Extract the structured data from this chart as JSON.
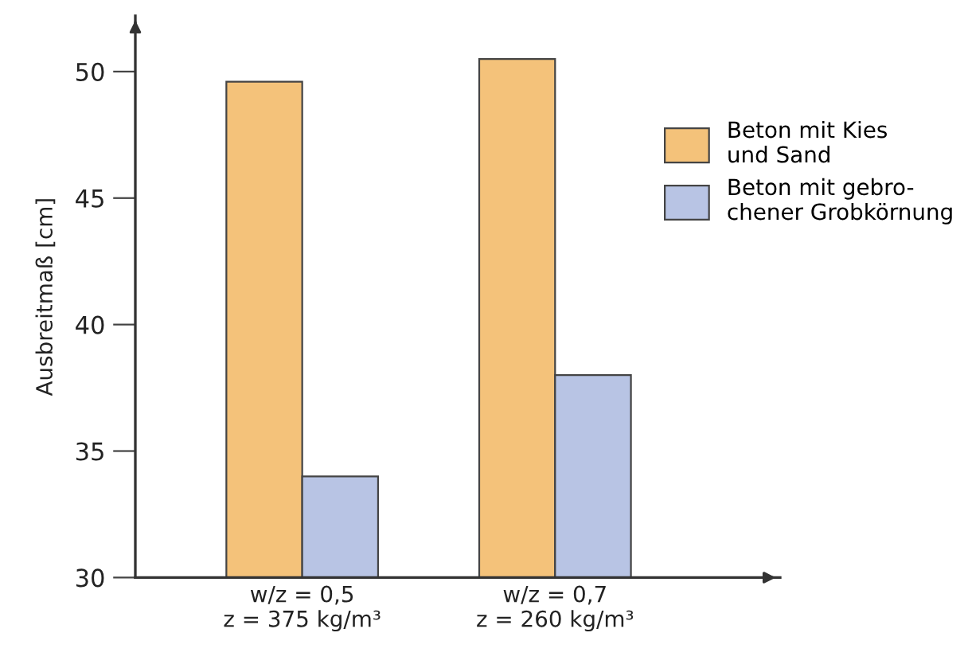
{
  "chart_data": {
    "type": "bar",
    "ylabel": "Ausbreitmaß [cm]",
    "categories": [
      "w/z = 0,5\nz = 375 kg/m³",
      "w/z = 0,7\nz = 260 kg/m³"
    ],
    "series": [
      {
        "name": "Beton mit Kies\nund Sand",
        "color": "#f4c27a",
        "values": [
          49.6,
          50.5
        ]
      },
      {
        "name": "Beton mit gebro-\nchener Grobkörnung",
        "color": "#b8c4e4",
        "values": [
          34.0,
          38.0
        ]
      }
    ],
    "ylim": [
      30,
      52.2
    ],
    "yticks": [
      30,
      35,
      40,
      45,
      50
    ],
    "grid": false,
    "legend": "right"
  }
}
